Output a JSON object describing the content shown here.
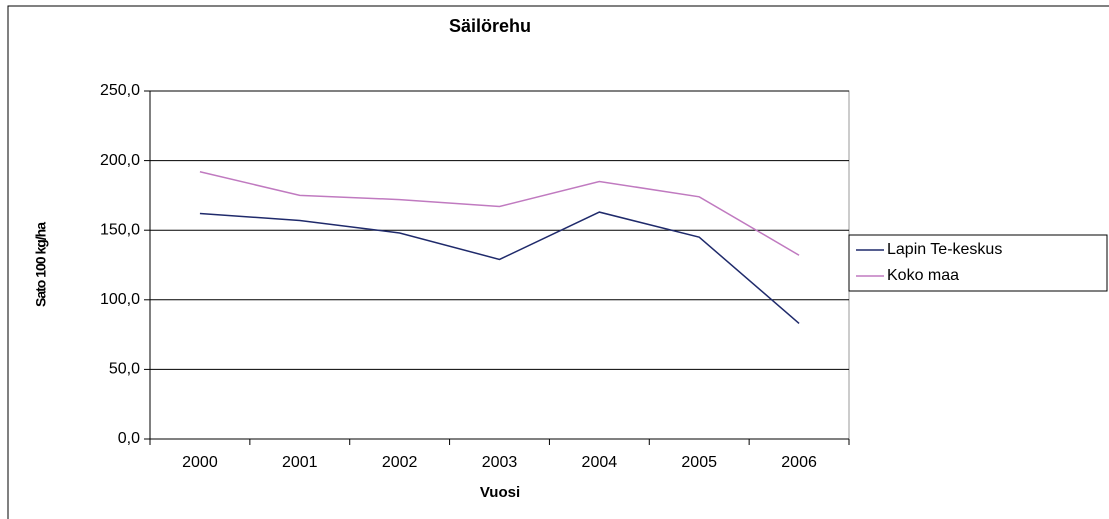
{
  "chart_data": {
    "type": "line",
    "title": "Säilörehu",
    "x_label": "Vuosi",
    "y_label": "Sato 100 kg/ha",
    "categories": [
      "2000",
      "2001",
      "2002",
      "2003",
      "2004",
      "2005",
      "2006"
    ],
    "series": [
      {
        "name": "Lapin Te-keskus",
        "color": "#1f2a6b",
        "values": [
          162,
          157,
          148,
          129,
          163,
          145,
          83
        ]
      },
      {
        "name": "Koko maa",
        "color": "#c07ac0",
        "values": [
          192,
          175,
          172,
          167,
          185,
          174,
          132
        ]
      }
    ],
    "ylim": [
      0,
      250
    ],
    "yticks": [
      {
        "value": 0,
        "label": "0,0"
      },
      {
        "value": 50,
        "label": "50,0"
      },
      {
        "value": 100,
        "label": "100,0"
      },
      {
        "value": 150,
        "label": "150,0"
      },
      {
        "value": 200,
        "label": "200,0"
      },
      {
        "value": 250,
        "label": "250,0"
      }
    ],
    "grid": true,
    "legend": "right"
  }
}
